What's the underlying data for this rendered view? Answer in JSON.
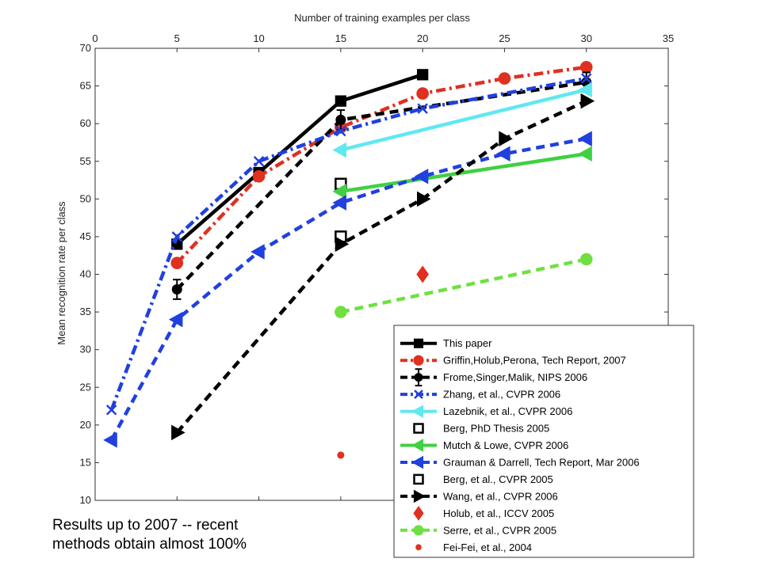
{
  "caption": {
    "line1": "Results up to 2007  -- recent",
    "line2": "methods obtain almost 100%"
  },
  "chart_data": {
    "type": "line",
    "xlabel": "Number of training examples per class",
    "ylabel": "Mean recognition rate per class",
    "xlim": [
      0,
      35
    ],
    "ylim": [
      10,
      70
    ],
    "x_ticks": [
      0,
      5,
      10,
      15,
      20,
      25,
      30,
      35
    ],
    "y_ticks": [
      10,
      15,
      20,
      25,
      30,
      35,
      40,
      45,
      50,
      55,
      60,
      65,
      70
    ],
    "x_axis_position": "top",
    "grid": false,
    "legend_position": "bottom-right",
    "series": [
      {
        "name": "This paper",
        "color": "#000000",
        "dash": "solid",
        "marker": "square",
        "x": [
          5,
          10,
          15,
          20
        ],
        "y": [
          44,
          53.5,
          63,
          66.5
        ]
      },
      {
        "name": "Griffin,Holub,Perona, Tech Report, 2007",
        "color": "#e03020",
        "dash": "dashdot",
        "marker": "circle",
        "x": [
          5,
          10,
          15,
          20,
          25,
          30
        ],
        "y": [
          41.5,
          53,
          59.5,
          64,
          66,
          67.5
        ]
      },
      {
        "name": "Frome,Singer,Malik, NIPS 2006",
        "color": "#000000",
        "dash": "dashed",
        "marker": "circle-errorbar",
        "x": [
          5,
          15,
          30
        ],
        "y": [
          38,
          60.5,
          65.5
        ]
      },
      {
        "name": "Zhang, et al., CVPR 2006",
        "color": "#2040e0",
        "dash": "dashdot",
        "marker": "cross",
        "x": [
          1,
          5,
          10,
          15,
          20,
          30
        ],
        "y": [
          22,
          45,
          55,
          59,
          62,
          66
        ]
      },
      {
        "name": "Lazebnik, et al., CVPR 2006",
        "color": "#60e8f0",
        "dash": "solid",
        "marker": "triangle-left",
        "x": [
          15,
          30
        ],
        "y": [
          56.5,
          64.5
        ]
      },
      {
        "name": "Berg, PhD Thesis 2005",
        "color": "#000000",
        "dash": "none",
        "marker": "hollow-square",
        "x": [
          15
        ],
        "y": [
          52
        ]
      },
      {
        "name": "Mutch & Lowe, CVPR 2006",
        "color": "#40d040",
        "dash": "solid",
        "marker": "triangle-left",
        "x": [
          15,
          30
        ],
        "y": [
          51,
          56
        ]
      },
      {
        "name": "Grauman & Darrell, Tech Report, Mar 2006",
        "color": "#2040e0",
        "dash": "dashed",
        "marker": "triangle-left",
        "x": [
          1,
          5,
          10,
          15,
          20,
          25,
          30
        ],
        "y": [
          18,
          34,
          43,
          49.5,
          53,
          56,
          58
        ]
      },
      {
        "name": "Berg, et al., CVPR 2005",
        "color": "#000000",
        "dash": "none",
        "marker": "hollow-square",
        "x": [
          15
        ],
        "y": [
          45
        ]
      },
      {
        "name": "Wang, et al., CVPR 2006",
        "color": "#000000",
        "dash": "dashed",
        "marker": "triangle-right",
        "x": [
          5,
          15,
          20,
          25,
          30
        ],
        "y": [
          19,
          44,
          50,
          58,
          63
        ]
      },
      {
        "name": "Holub, et al., ICCV 2005",
        "color": "#e03020",
        "dash": "none",
        "marker": "diamond",
        "x": [
          20
        ],
        "y": [
          40
        ]
      },
      {
        "name": "Serre, et al., CVPR 2005",
        "color": "#70e040",
        "dash": "dashed",
        "marker": "circle",
        "x": [
          15,
          30
        ],
        "y": [
          35,
          42
        ]
      },
      {
        "name": "Fei-Fei, et al., 2004",
        "color": "#e03020",
        "dash": "none",
        "marker": "dot",
        "x": [
          15
        ],
        "y": [
          16
        ]
      }
    ]
  }
}
